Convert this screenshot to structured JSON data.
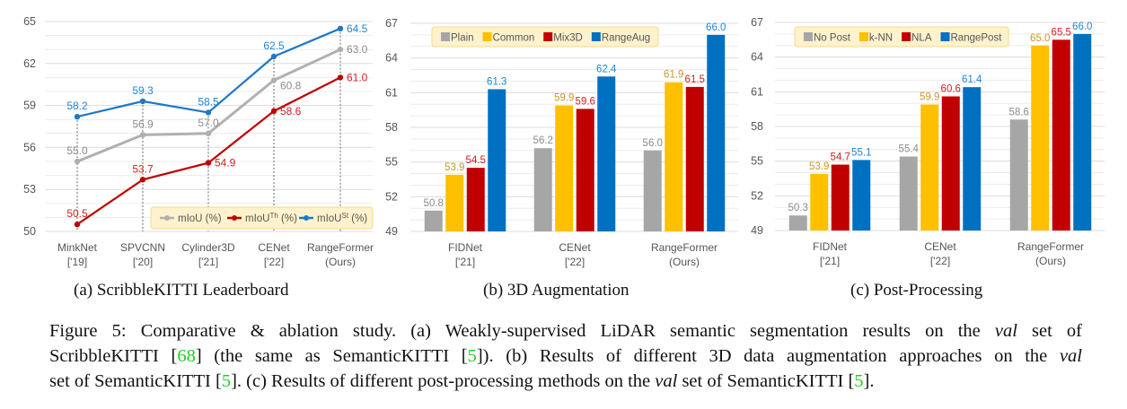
{
  "chart_data": [
    {
      "type": "line",
      "categories": [
        [
          "MinkNet",
          "['19]"
        ],
        [
          "SPVCNN",
          "['20]"
        ],
        [
          "Cylinder3D",
          "['21]"
        ],
        [
          "CENet",
          "['22]"
        ],
        [
          "RangeFormer",
          "(Ours)"
        ]
      ],
      "ylim": [
        50,
        65
      ],
      "yticks": [
        50,
        53,
        56,
        59,
        62,
        65
      ],
      "grid": true,
      "legend_position": "bottom-right",
      "series": [
        {
          "name": "mIoU",
          "sup": "",
          "unit": " (%)",
          "color": "#b0b0b0",
          "label_color": "#8c8c8c",
          "values": [
            55.0,
            56.9,
            57.0,
            60.8,
            63.0
          ]
        },
        {
          "name": "mIoU",
          "sup": "Th",
          "unit": " (%)",
          "color": "#c00000",
          "label_color": "#d42020",
          "values": [
            50.5,
            53.7,
            54.9,
            58.6,
            61.0
          ]
        },
        {
          "name": "mIoU",
          "sup": "St",
          "unit": " (%)",
          "color": "#1f78c8",
          "label_color": "#1f86d6",
          "values": [
            58.2,
            59.3,
            58.5,
            62.5,
            64.5
          ]
        }
      ],
      "subcaption": "(a) ScribbleKITTI Leaderboard"
    },
    {
      "type": "bar",
      "categories": [
        [
          "FIDNet",
          "['21]"
        ],
        [
          "CENet",
          "['22]"
        ],
        [
          "RangeFormer",
          "(Ours)"
        ]
      ],
      "ylim": [
        49,
        67
      ],
      "yticks": [
        49,
        52,
        55,
        58,
        61,
        64,
        67
      ],
      "grid": true,
      "legend_position": "top-left",
      "series": [
        {
          "name": "Plain",
          "color": "#a6a6a6",
          "label_color": "#8c8c8c",
          "values": [
            50.8,
            56.2,
            56.0
          ]
        },
        {
          "name": "Common",
          "color": "#ffc000",
          "label_color": "#c89a20",
          "values": [
            53.9,
            59.9,
            61.9
          ]
        },
        {
          "name": "Mix3D",
          "color": "#c00000",
          "label_color": "#d42020",
          "values": [
            54.5,
            59.6,
            61.5
          ]
        },
        {
          "name": "RangeAug",
          "color": "#0070c0",
          "label_color": "#1f86d6",
          "values": [
            61.3,
            62.4,
            66.0
          ]
        }
      ],
      "subcaption": "(b) 3D Augmentation"
    },
    {
      "type": "bar",
      "categories": [
        [
          "FIDNet",
          "['21]"
        ],
        [
          "CENet",
          "['22]"
        ],
        [
          "RangeFormer",
          "(Ours)"
        ]
      ],
      "ylim": [
        49,
        67
      ],
      "yticks": [
        49,
        52,
        55,
        58,
        61,
        64,
        67
      ],
      "grid": true,
      "legend_position": "top-left",
      "series": [
        {
          "name": "No Post",
          "color": "#a6a6a6",
          "label_color": "#8c8c8c",
          "values": [
            50.3,
            55.4,
            58.6
          ]
        },
        {
          "name": "k-NN",
          "color": "#ffc000",
          "label_color": "#c89a20",
          "values": [
            53.9,
            59.9,
            65.0
          ]
        },
        {
          "name": "NLA",
          "color": "#c00000",
          "label_color": "#d42020",
          "values": [
            54.7,
            60.6,
            65.5
          ]
        },
        {
          "name": "RangePost",
          "color": "#0070c0",
          "label_color": "#1f86d6",
          "values": [
            55.1,
            61.4,
            66.0
          ]
        }
      ],
      "subcaption": "(c) Post-Processing"
    }
  ],
  "caption": {
    "lines": [
      [
        {
          "t": "Figure 5: Comparative & ablation study.  (a) Weakly-supervised LiDAR semantic segmentation results on the "
        },
        {
          "t": "val",
          "s": "it"
        },
        {
          "t": " set of"
        }
      ],
      [
        {
          "t": "ScribbleKITTI ["
        },
        {
          "t": "68",
          "s": "cite"
        },
        {
          "t": "] (the same as SemanticKITTI ["
        },
        {
          "t": "5",
          "s": "cite"
        },
        {
          "t": "]). (b) Results of different 3D data augmentation approaches on the "
        },
        {
          "t": "val",
          "s": "it"
        }
      ],
      [
        {
          "t": "set of SemanticKITTI ["
        },
        {
          "t": "5",
          "s": "cite"
        },
        {
          "t": "]. (c) Results of different post-processing methods on the "
        },
        {
          "t": "val",
          "s": "it"
        },
        {
          "t": " set of SemanticKITTI ["
        },
        {
          "t": "5",
          "s": "cite"
        },
        {
          "t": "]."
        }
      ]
    ]
  }
}
